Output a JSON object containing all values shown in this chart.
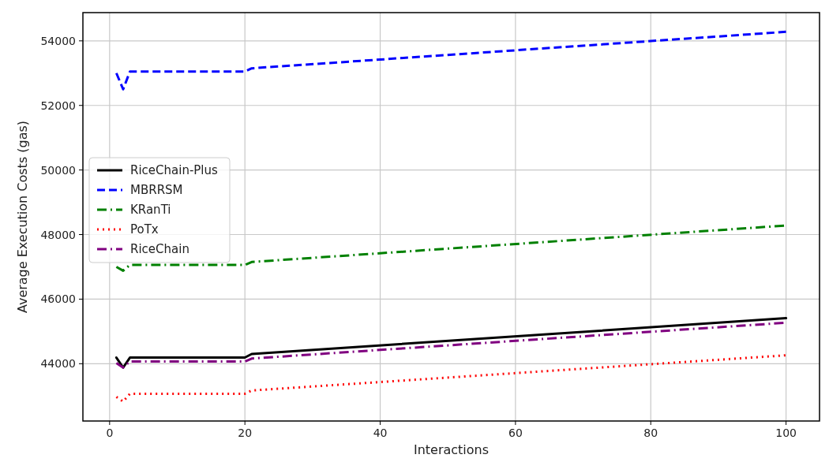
{
  "chart_data": {
    "type": "line",
    "xlabel": "Interactions",
    "ylabel": "Average Execution Costs (gas)",
    "x": [
      1,
      2,
      3,
      20,
      21,
      100
    ],
    "xlim": [
      -3.95,
      104.95
    ],
    "ylim": [
      42225,
      54875
    ],
    "xticks": [
      0,
      20,
      40,
      60,
      80,
      100
    ],
    "yticks": [
      44000,
      46000,
      48000,
      50000,
      52000,
      54000
    ],
    "grid": true,
    "legend": "left",
    "marker": "none",
    "series": [
      {
        "name": "RiceChain-Plus",
        "color": "#000000",
        "line_style": "solid",
        "values": [
          44190,
          43880,
          44190,
          44190,
          44300,
          45410
        ]
      },
      {
        "name": "MBRRSM",
        "color": "#0000ff",
        "line_style": "dashed",
        "values": [
          53000,
          52500,
          53050,
          53050,
          53150,
          54280
        ]
      },
      {
        "name": "KRanTi",
        "color": "#008000",
        "line_style": "dashdot",
        "values": [
          47000,
          46880,
          47060,
          47060,
          47150,
          48280
        ]
      },
      {
        "name": "PoTx",
        "color": "#ff0000",
        "line_style": "dotted",
        "values": [
          42970,
          42830,
          43070,
          43070,
          43170,
          44260
        ]
      },
      {
        "name": "RiceChain",
        "color": "#800080",
        "line_style": "dashdot",
        "values": [
          44020,
          43880,
          44070,
          44070,
          44160,
          45270
        ]
      }
    ]
  }
}
